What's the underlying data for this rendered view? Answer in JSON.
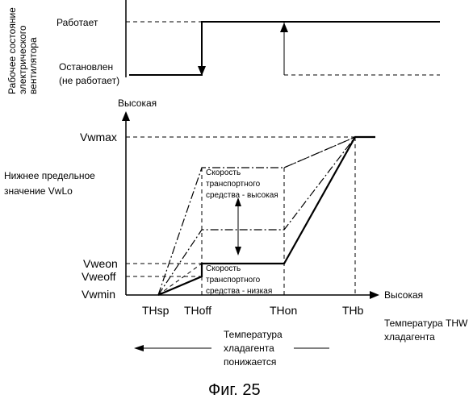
{
  "fan_panel": {
    "ylabel_lines": [
      "Рабочее состояние",
      "электрического",
      "вентилятора"
    ],
    "state_on": "Работает",
    "state_off_lines": [
      "Остановлен",
      "(не работает)"
    ]
  },
  "main_panel": {
    "y_high": "Высокая",
    "x_high": "Высокая",
    "lower_limit_lines": [
      "Нижнее предельное",
      "значение VwLo"
    ],
    "y_levels": [
      "Vwmax",
      "Vweon",
      "Vweoff",
      "Vwmin"
    ],
    "x_ticks": [
      "THsp",
      "THoff",
      "THon",
      "THb"
    ],
    "speed_high_lines": [
      "Скорость",
      "транспортного",
      "средства - высокая"
    ],
    "speed_low_lines": [
      "Скорость",
      "транспортного",
      "средства - низкая"
    ],
    "x_title_lines": [
      "Температура THW",
      "хладагента"
    ],
    "temp_falls_lines": [
      "Температура",
      "хладагента",
      "понижается"
    ]
  },
  "caption": "Фиг. 25"
}
